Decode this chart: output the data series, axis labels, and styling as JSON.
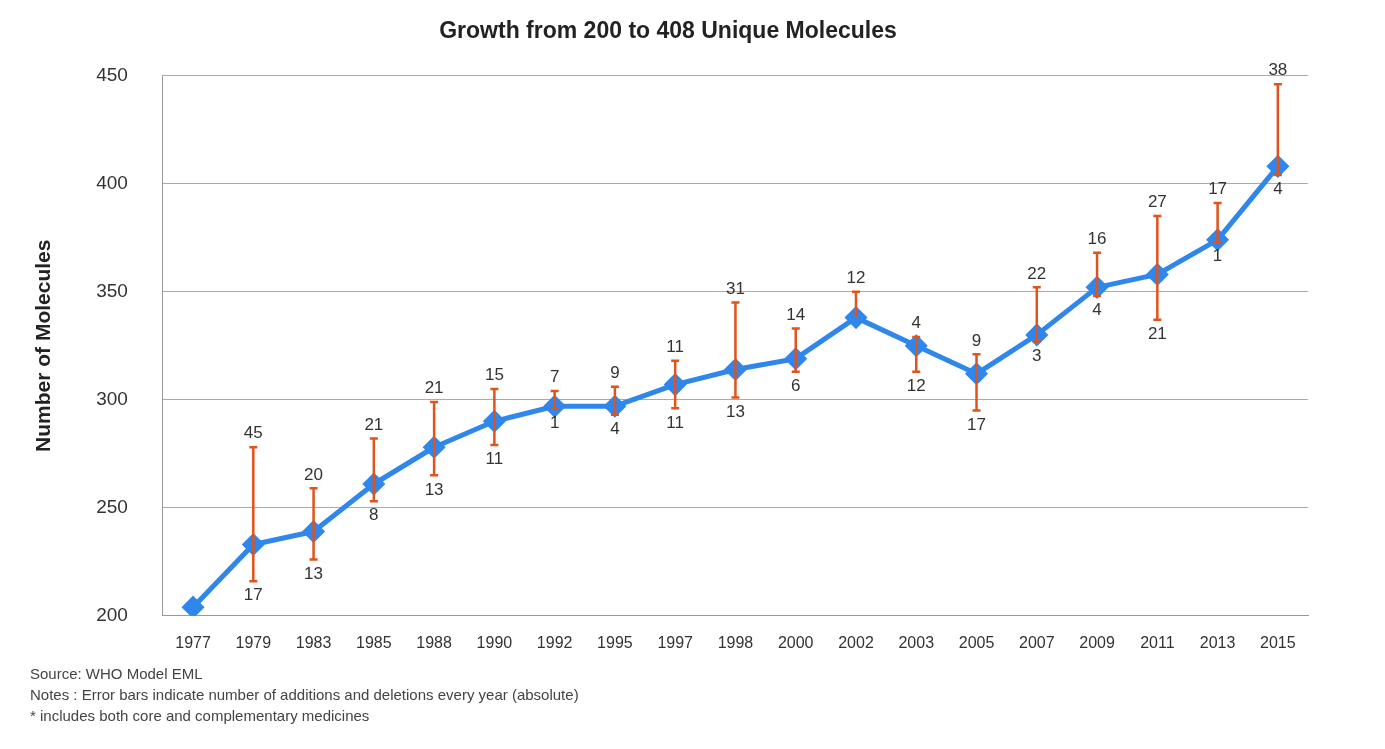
{
  "chart_data": {
    "type": "line",
    "title": "Growth from 200 to 408 Unique Molecules",
    "ylabel": "Number of Molecules",
    "categories": [
      "1977",
      "1979",
      "1983",
      "1985",
      "1988",
      "1990",
      "1992",
      "1995",
      "1997",
      "1998",
      "2000",
      "2002",
      "2003",
      "2005",
      "2007",
      "2009",
      "2011",
      "2013",
      "2015"
    ],
    "series": [
      {
        "color": "#2f86eb",
        "values": [
          204,
          233,
          239,
          261,
          278,
          290,
          297,
          297,
          307,
          314,
          319,
          338,
          325,
          312,
          330,
          352,
          358,
          374,
          408
        ],
        "errors": [
          null,
          [
            216,
            278
          ],
          [
            226,
            259
          ],
          [
            253,
            282
          ],
          [
            265,
            299
          ],
          [
            279,
            305
          ],
          [
            296,
            304
          ],
          [
            293,
            306
          ],
          [
            296,
            318
          ],
          [
            301,
            345
          ],
          [
            313,
            333
          ],
          [
            338,
            350
          ],
          [
            313,
            329
          ],
          [
            295,
            321
          ],
          [
            327,
            352
          ],
          [
            348,
            368
          ],
          [
            337,
            385
          ],
          [
            373,
            391
          ],
          [
            404,
            446
          ]
        ]
      }
    ],
    "ylim": [
      200,
      450
    ],
    "yticks": [
      200,
      250,
      300,
      350,
      400,
      450
    ],
    "grid": "y",
    "marker": "diamond",
    "line_style": "solid",
    "legend": false,
    "annotations": [
      "Source: WHO Model EML",
      "Notes : Error bars indicate number of additions and deletions every year (absolute)",
      "* includes both core and complementary medicines",
      {
        "text": "45",
        "x": "1979",
        "y": 278
      },
      {
        "text": "17",
        "x": "1979",
        "y": 216
      },
      {
        "text": "20",
        "x": "1983",
        "y": 259
      },
      {
        "text": "13",
        "x": "1983",
        "y": 226
      },
      {
        "text": "21",
        "x": "1985",
        "y": 282
      },
      {
        "text": "8",
        "x": "1985",
        "y": 253
      },
      {
        "text": "21",
        "x": "1988",
        "y": 299
      },
      {
        "text": "13",
        "x": "1988",
        "y": 265
      },
      {
        "text": "15",
        "x": "1990",
        "y": 305
      },
      {
        "text": "11",
        "x": "1990",
        "y": 279
      },
      {
        "text": "7",
        "x": "1992",
        "y": 304
      },
      {
        "text": "1",
        "x": "1992",
        "y": 296
      },
      {
        "text": "9",
        "x": "1995",
        "y": 306
      },
      {
        "text": "4",
        "x": "1995",
        "y": 293
      },
      {
        "text": "11",
        "x": "1997",
        "y": 318
      },
      {
        "text": "11",
        "x": "1997",
        "y": 296
      },
      {
        "text": "31",
        "x": "1998",
        "y": 345
      },
      {
        "text": "13",
        "x": "1998",
        "y": 301
      },
      {
        "text": "14",
        "x": "2000",
        "y": 333
      },
      {
        "text": "6",
        "x": "2000",
        "y": 313
      },
      {
        "text": "12",
        "x": "2002",
        "y": 350
      },
      {
        "text": "4",
        "x": "2003",
        "y": 329
      },
      {
        "text": "12",
        "x": "2003",
        "y": 313
      },
      {
        "text": "9",
        "x": "2005",
        "y": 321
      },
      {
        "text": "17",
        "x": "2005",
        "y": 295
      },
      {
        "text": "22",
        "x": "2007",
        "y": 352
      },
      {
        "text": "3",
        "x": "2007",
        "y": 327
      },
      {
        "text": "16",
        "x": "2009",
        "y": 368
      },
      {
        "text": "4",
        "x": "2009",
        "y": 348
      },
      {
        "text": "27",
        "x": "2011",
        "y": 385
      },
      {
        "text": "21",
        "x": "2011",
        "y": 337
      },
      {
        "text": "17",
        "x": "2013",
        "y": 391
      },
      {
        "text": "1",
        "x": "2013",
        "y": 373
      },
      {
        "text": "38",
        "x": "2015",
        "y": 446
      },
      {
        "text": "4",
        "x": "2015",
        "y": 404
      }
    ]
  }
}
